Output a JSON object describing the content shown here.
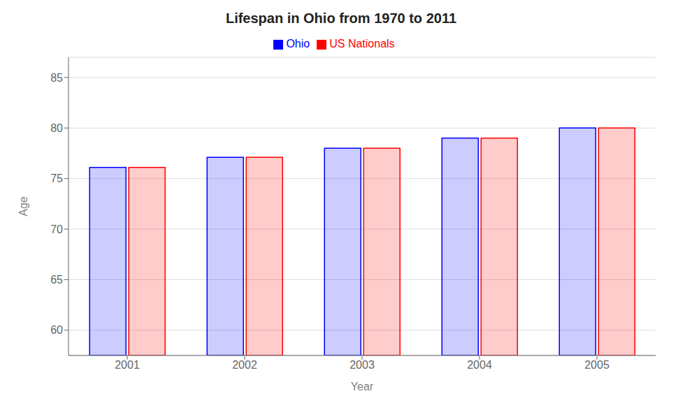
{
  "chart_data": {
    "type": "bar",
    "title": "Lifespan in Ohio from 1970 to 2011",
    "xlabel": "Year",
    "ylabel": "Age",
    "categories": [
      2001,
      2002,
      2003,
      2004,
      2005
    ],
    "series": [
      {
        "name": "Ohio",
        "color": "#0000ff",
        "values": [
          76.1,
          77.1,
          78.0,
          79.0,
          80.0
        ]
      },
      {
        "name": "US Nationals",
        "color": "#ff0000",
        "values": [
          76.1,
          77.1,
          78.0,
          79.0,
          80.0
        ]
      }
    ],
    "ylim": [
      57.5,
      87
    ],
    "yticks": [
      60,
      65,
      70,
      75,
      80,
      85
    ],
    "grid": true,
    "legend": "top"
  }
}
